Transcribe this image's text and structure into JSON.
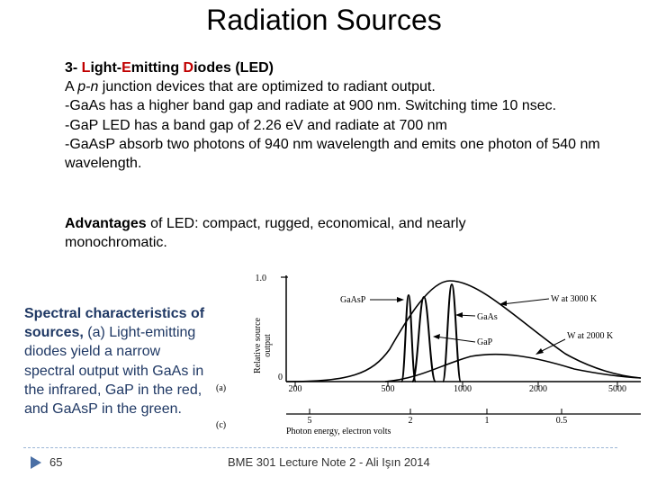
{
  "title": "Radiation Sources",
  "intro": {
    "heading_prefix": "3- ",
    "heading_l": "L",
    "heading_part1": "ight-",
    "heading_e": "E",
    "heading_part2": "mitting ",
    "heading_d": "D",
    "heading_part3": "iodes (LED)",
    "line2_a": "A ",
    "line2_pn": "p-n",
    "line2_b": " junction devices that are optimized to radiant output.",
    "line3": "-GaAs has a higher band gap and radiate at 900 nm. Switching time 10 nsec.",
    "line4": "-GaP LED has a band gap of 2.26 eV and radiate at 700 nm",
    "line5": "-GaAsP absorb two photons of 940 nm wavelength and emits one photon of 540 nm wavelength."
  },
  "advantages": {
    "label": "Advantages",
    "text": " of LED: compact, rugged, economical, and nearly monochromatic."
  },
  "caption": {
    "bold": "Spectral characteristics of sources,",
    "text": " (a) Light-emitting diodes yield a narrow spectral output with GaAs in the infrared, GaP in the red, and GaAsP in the green."
  },
  "figure": {
    "y_top_tick": "1.0",
    "y_zero_tick": "0",
    "y_axis_label_1": "Relative source",
    "y_axis_label_2": "output",
    "label_a": "(a)",
    "label_c": "(c)",
    "wavelength_ticks": [
      "200",
      "500",
      "1000",
      "2000",
      "5000"
    ],
    "energy_ticks": [
      "5",
      "2",
      "1",
      "0.5"
    ],
    "x_axis_label": "Photon energy, electron volts",
    "curve_labels": {
      "gaasp": "GaAsP",
      "gaas": "GaAs",
      "gap": "GaP",
      "w3000": "W at 3000 K",
      "w2000": "W at 2000 K"
    }
  },
  "footer": {
    "page_number": "65",
    "text": "BME 301 Lecture Note 2 - Ali Işın 2014"
  },
  "colors": {
    "heading_accent": "#c00000",
    "caption_color": "#1f3864",
    "footer_arrow": "#4a6fa5"
  }
}
